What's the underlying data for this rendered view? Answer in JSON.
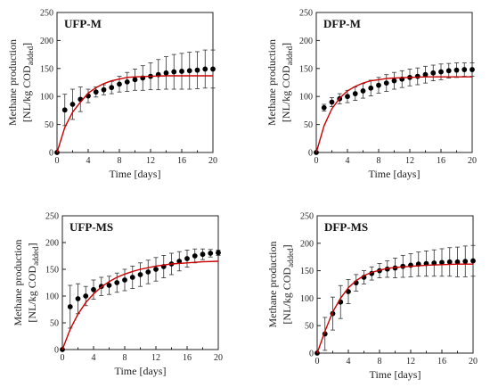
{
  "chart_data": [
    {
      "type": "scatter",
      "title": "UFP-M",
      "xlabel": "Time [days]",
      "ylabel": "Methane production",
      "ylabel_line2_prefix": "[NL/kg COD",
      "ylabel_line2_sub": "added",
      "ylabel_line2_suffix": "]",
      "xlim": [
        0,
        20
      ],
      "ylim": [
        0,
        250
      ],
      "xticks": [
        "0",
        "4",
        "8",
        "12",
        "16",
        "20"
      ],
      "yticks": [
        "0",
        "50",
        "100",
        "150",
        "200",
        "250"
      ],
      "grid": false,
      "series": [
        {
          "kind": "points",
          "x": [
            0,
            1,
            2,
            3,
            4,
            5,
            6,
            7,
            8,
            9,
            10,
            11,
            12,
            13,
            14,
            15,
            16,
            17,
            18,
            19,
            20
          ],
          "y": [
            0,
            76,
            86,
            95,
            101,
            108,
            112,
            116,
            122,
            126,
            130,
            133,
            136,
            139,
            142,
            144,
            145,
            146,
            147,
            149,
            149
          ],
          "err": [
            0,
            28,
            27,
            22,
            12,
            9,
            9,
            11,
            14,
            17,
            19,
            22,
            24,
            27,
            29,
            31,
            32,
            33,
            33,
            34,
            34
          ]
        },
        {
          "kind": "line",
          "color": "#cc0000",
          "x": [
            0,
            1,
            2,
            3,
            4,
            5,
            6,
            7,
            8,
            9,
            10,
            12,
            14,
            16,
            18,
            20
          ],
          "y": [
            0,
            45,
            72,
            90,
            106,
            116,
            123,
            128,
            131,
            134,
            135,
            136,
            137,
            137,
            137,
            137
          ]
        }
      ]
    },
    {
      "type": "scatter",
      "title": "DFP-M",
      "xlabel": "Time [days]",
      "ylabel": "Methane production",
      "ylabel_line2_prefix": "[NL/kg COD",
      "ylabel_line2_sub": "added",
      "ylabel_line2_suffix": "]",
      "xlim": [
        0,
        20
      ],
      "ylim": [
        0,
        250
      ],
      "xticks": [
        "0",
        "4",
        "8",
        "12",
        "16",
        "20"
      ],
      "yticks": [
        "0",
        "50",
        "100",
        "150",
        "200",
        "250"
      ],
      "grid": false,
      "series": [
        {
          "kind": "points",
          "x": [
            0,
            1,
            2,
            3,
            4,
            5,
            6,
            7,
            8,
            9,
            10,
            11,
            12,
            13,
            14,
            15,
            16,
            17,
            18,
            19,
            20
          ],
          "y": [
            0,
            80,
            90,
            96,
            100,
            105,
            110,
            115,
            120,
            124,
            128,
            131,
            134,
            136,
            139,
            142,
            144,
            146,
            147,
            148,
            148
          ],
          "err": [
            0,
            6,
            8,
            9,
            11,
            12,
            13,
            14,
            14,
            15,
            15,
            15,
            15,
            15,
            15,
            14,
            14,
            13,
            13,
            12,
            12
          ]
        },
        {
          "kind": "line",
          "color": "#cc0000",
          "x": [
            0,
            1,
            2,
            3,
            4,
            5,
            6,
            7,
            8,
            9,
            10,
            12,
            14,
            16,
            18,
            20
          ],
          "y": [
            0,
            48,
            78,
            97,
            110,
            118,
            124,
            128,
            130,
            132,
            133,
            134,
            135,
            135,
            135,
            135
          ]
        }
      ]
    },
    {
      "type": "scatter",
      "title": "UFP-MS",
      "xlabel": "Time [days]",
      "ylabel": "Methane production",
      "ylabel_line2_prefix": "[NL/kg COD",
      "ylabel_line2_sub": "added",
      "ylabel_line2_suffix": "]",
      "xlim": [
        0,
        20
      ],
      "ylim": [
        0,
        250
      ],
      "xticks": [
        "0",
        "4",
        "8",
        "12",
        "16",
        "20"
      ],
      "yticks": [
        "0",
        "50",
        "100",
        "150",
        "200",
        "250"
      ],
      "grid": false,
      "series": [
        {
          "kind": "points",
          "x": [
            0,
            1,
            2,
            3,
            4,
            5,
            6,
            7,
            8,
            9,
            10,
            11,
            12,
            13,
            14,
            15,
            16,
            17,
            18,
            19,
            20
          ],
          "y": [
            0,
            80,
            95,
            100,
            112,
            118,
            120,
            125,
            130,
            135,
            140,
            145,
            150,
            155,
            160,
            165,
            170,
            175,
            178,
            180,
            181
          ],
          "err": [
            0,
            40,
            28,
            18,
            18,
            17,
            17,
            18,
            20,
            21,
            22,
            22,
            22,
            21,
            20,
            18,
            16,
            13,
            10,
            7,
            5
          ]
        },
        {
          "kind": "line",
          "color": "#cc0000",
          "x": [
            0,
            1,
            2,
            3,
            4,
            5,
            6,
            7,
            8,
            9,
            10,
            12,
            14,
            16,
            18,
            20
          ],
          "y": [
            0,
            38,
            66,
            88,
            104,
            117,
            127,
            135,
            141,
            146,
            150,
            156,
            160,
            162,
            164,
            165
          ]
        }
      ]
    },
    {
      "type": "scatter",
      "title": "DFP-MS",
      "xlabel": "Time [days]",
      "ylabel": "Methane production",
      "ylabel_line2_prefix": "[NL/kg COD",
      "ylabel_line2_sub": "added",
      "ylabel_line2_suffix": "]",
      "xlim": [
        0,
        20
      ],
      "ylim": [
        0,
        250
      ],
      "xticks": [
        "0",
        "4",
        "8",
        "12",
        "16",
        "20"
      ],
      "yticks": [
        "0",
        "50",
        "100",
        "150",
        "200",
        "250"
      ],
      "grid": false,
      "series": [
        {
          "kind": "points",
          "x": [
            0,
            1,
            2,
            3,
            4,
            5,
            6,
            7,
            8,
            9,
            10,
            11,
            12,
            13,
            14,
            15,
            16,
            17,
            18,
            19,
            20
          ],
          "y": [
            0,
            35,
            72,
            93,
            112,
            128,
            138,
            145,
            150,
            153,
            155,
            158,
            160,
            162,
            163,
            164,
            165,
            166,
            166,
            167,
            168
          ],
          "err": [
            0,
            30,
            30,
            30,
            22,
            15,
            12,
            12,
            13,
            15,
            18,
            20,
            21,
            22,
            23,
            24,
            25,
            26,
            27,
            28,
            28
          ]
        },
        {
          "kind": "line",
          "color": "#cc0000",
          "x": [
            0,
            1,
            2,
            3,
            4,
            5,
            6,
            7,
            8,
            9,
            10,
            12,
            14,
            16,
            18,
            20
          ],
          "y": [
            0,
            40,
            75,
            100,
            119,
            132,
            141,
            147,
            151,
            154,
            156,
            158,
            160,
            161,
            162,
            162
          ]
        }
      ]
    }
  ]
}
